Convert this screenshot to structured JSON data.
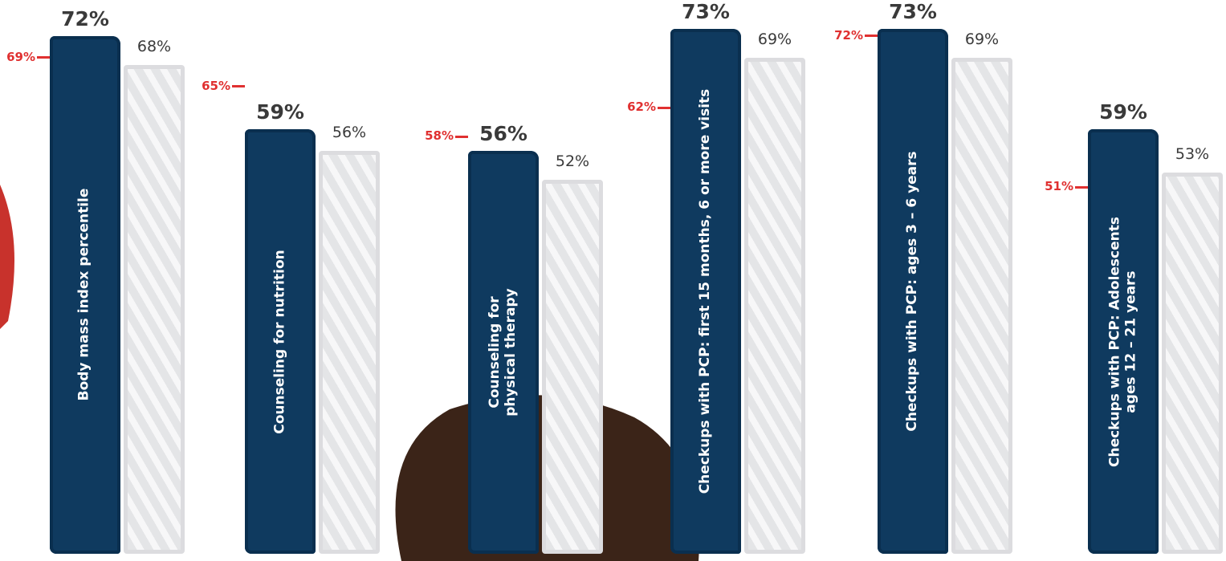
{
  "chart_data": {
    "type": "bar",
    "categories": [
      "Body mass index percentile",
      "Counseling for nutrition",
      "Counseling for\nphysical therapy",
      "Checkups with PCP: first 15 months, 6 or more visits",
      "Checkups with PCP: ages 3 – 6 years",
      "Checkups with PCP: Adolescents\nages 12 – 21 years"
    ],
    "series": [
      {
        "color": "#0f3a5f",
        "values": [
          72,
          59,
          56,
          73,
          73,
          59
        ],
        "value_labels": [
          "72%",
          "59%",
          "56%",
          "73%",
          "73%",
          "59%"
        ]
      },
      {
        "color": "#dcdcdf",
        "values": [
          68,
          56,
          52,
          69,
          69,
          53
        ],
        "value_labels": [
          "68%",
          "56%",
          "52%",
          "69%",
          "69%",
          "53%"
        ]
      },
      {
        "color": "#e03030",
        "values": [
          69,
          65,
          58,
          62,
          72,
          51
        ],
        "value_labels": [
          "69%",
          "65%",
          "58%",
          "62%",
          "72%",
          "51%"
        ]
      }
    ]
  }
}
